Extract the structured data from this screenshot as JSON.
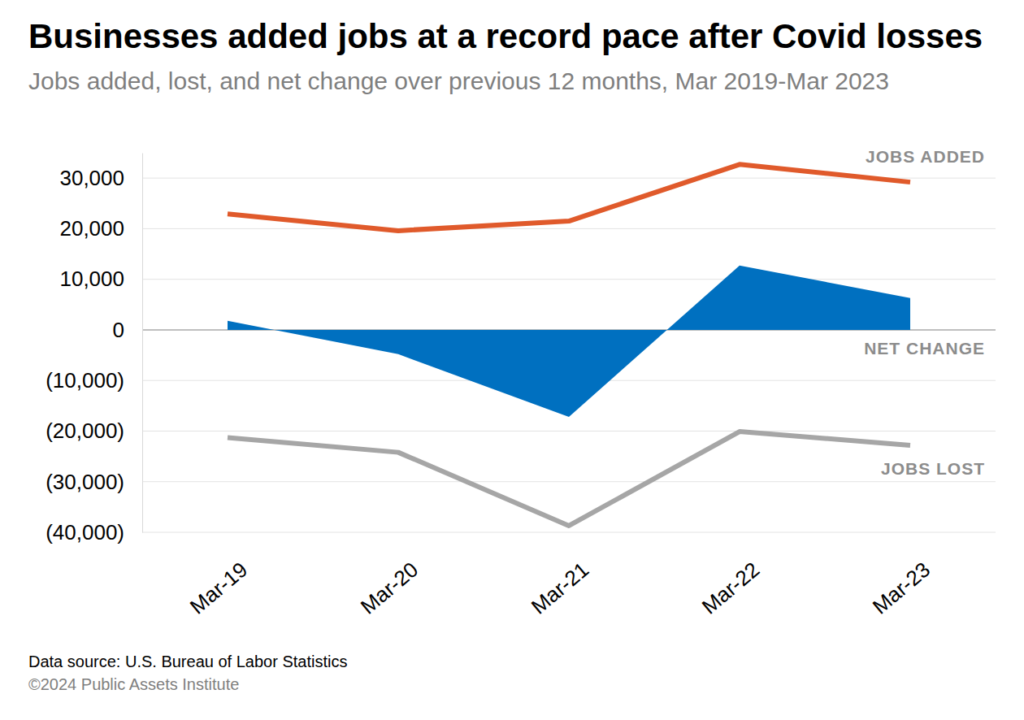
{
  "chart_data": {
    "type": "line",
    "title": "Businesses added jobs at a record pace after Covid losses",
    "subtitle": "Jobs added, lost, and net change over previous 12 months, Mar 2019-Mar 2023",
    "source": "Data source: U.S. Bureau of Labor Statistics",
    "copyright": "©2024 Public Assets Institute",
    "categories": [
      "Mar-19",
      "Mar-20",
      "Mar-21",
      "Mar-22",
      "Mar-23"
    ],
    "series": [
      {
        "name": "JOBS ADDED",
        "type": "line",
        "color": "#e05a2b",
        "values": [
          22900,
          19600,
          21500,
          32700,
          29200
        ]
      },
      {
        "name": "NET CHANGE",
        "type": "area",
        "color": "#0070c0",
        "values": [
          1800,
          -4800,
          -17200,
          12700,
          6300
        ]
      },
      {
        "name": "JOBS LOST",
        "type": "line",
        "color": "#a6a6a6",
        "values": [
          -21300,
          -24200,
          -38700,
          -20100,
          -22800
        ]
      }
    ],
    "ylim": [
      -40000,
      35000
    ],
    "yticks": [
      {
        "value": -40000,
        "label": "(40,000)"
      },
      {
        "value": -30000,
        "label": "(30,000)"
      },
      {
        "value": -20000,
        "label": "(20,000)"
      },
      {
        "value": -10000,
        "label": "(10,000)"
      },
      0,
      {
        "value": 10000,
        "label": "10,000"
      },
      {
        "value": 20000,
        "label": "20,000"
      },
      {
        "value": 30000,
        "label": "30,000"
      }
    ],
    "grid": true
  }
}
